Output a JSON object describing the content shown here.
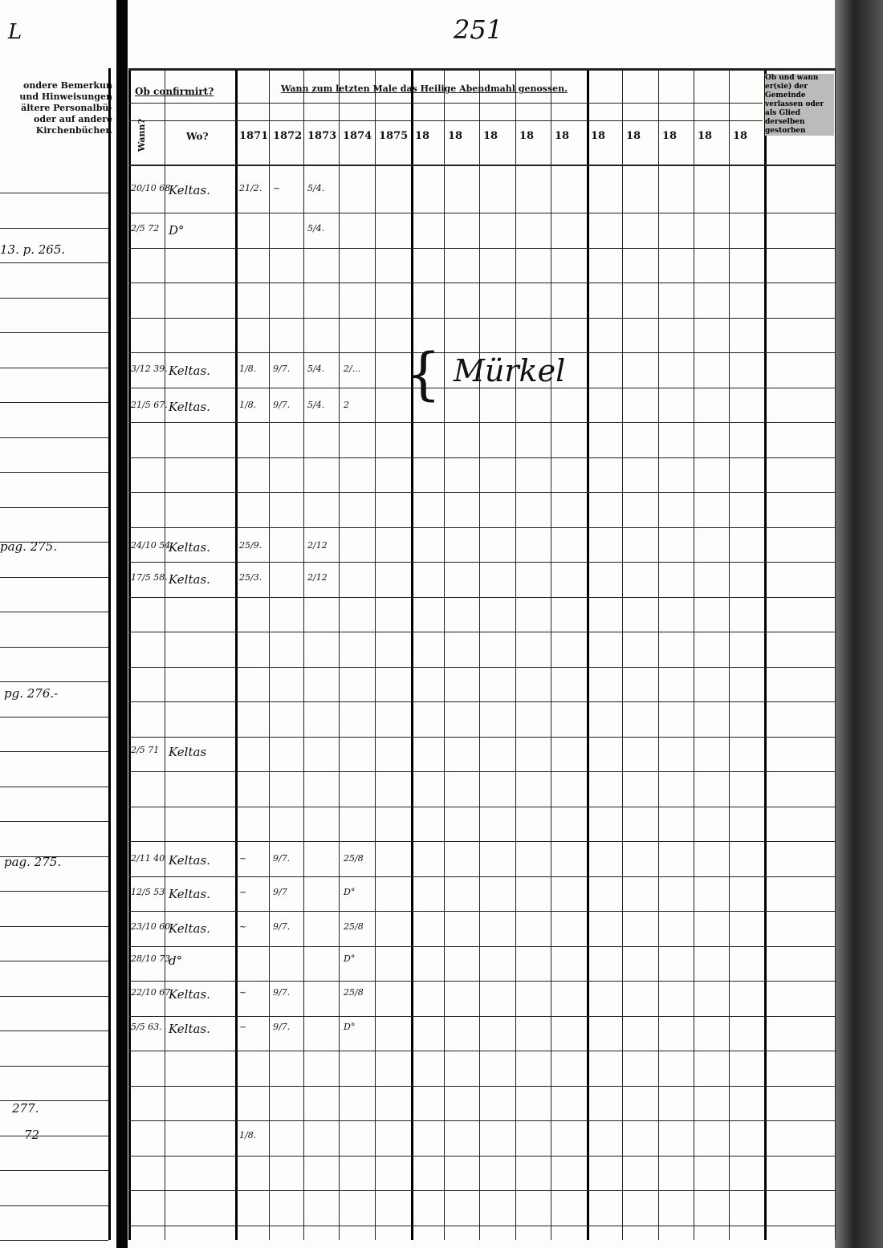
{
  "page_number": "251",
  "left_page": {
    "header_lines": [
      "ondere Bemerkun",
      "und Hinweisungen",
      "ältere Personalbü-",
      "oder auf andere",
      "Kirchenbücher."
    ],
    "top_mark": "L",
    "notes": [
      {
        "text": "13. p. 265."
      },
      {
        "text": "pag. 275."
      },
      {
        "text": "pg. 276.-"
      },
      {
        "text": "pag. 275."
      },
      {
        "text": "277."
      },
      {
        "text": "72"
      }
    ]
  },
  "table": {
    "confirmed_header": "Ob confirmirt?",
    "when_header": "Wann?",
    "where_header": "Wo?",
    "communion_header": "Wann zum letzten Male das Heilige Abendmahl genossen.",
    "year_columns": [
      "1871",
      "1872",
      "1873",
      "1874",
      "1875",
      "18",
      "18",
      "18",
      "18",
      "18",
      "18",
      "18",
      "18",
      "18",
      "18"
    ],
    "last_column_header": "Ob und wann er(sie) der Gemeinde verlassen oder als Glied derselben gestorben",
    "rows": [
      {
        "when": "20/10 68",
        "where": "Keltas.",
        "c1871": "21/2.",
        "c1872": "~",
        "c1873": "5/4."
      },
      {
        "when": "2/5 72",
        "where": "D°",
        "c1873": "5/4."
      },
      {
        "when": "3/12 39.",
        "where": "Keltas.",
        "c1871": "1/8.",
        "c1872": "9/7.",
        "c1873": "5/4.",
        "c1874": "2/..."
      },
      {
        "when": "21/5 67.",
        "where": "Keltas.",
        "c1871": "1/8.",
        "c1872": "9/7.",
        "c1873": "5/4.",
        "c1874": "2"
      },
      {
        "when": "24/10 54.",
        "where": "Keltas.",
        "c1871": "25/9.",
        "c1873": "2/12"
      },
      {
        "when": "17/5 58.",
        "where": "Keltas.",
        "c1871": "25/3.",
        "c1873": "2/12"
      },
      {
        "when": "2/5 71",
        "where": "Keltas"
      },
      {
        "when": "2/11 40",
        "where": "Keltas.",
        "c1871": "~",
        "c1872": "9/7.",
        "c1874": "25/8"
      },
      {
        "when": "12/5 53",
        "where": "Keltas.",
        "c1871": "~",
        "c1872": "9/7",
        "c1874": "D°"
      },
      {
        "when": "23/10 60.",
        "where": "Keltas.",
        "c1871": "~",
        "c1872": "9/7.",
        "c1874": "25/8"
      },
      {
        "when": "28/10 73",
        "where": "d°",
        "c1874": "D°"
      },
      {
        "when": "22/10 67.",
        "where": "Keltas.",
        "c1871": "~",
        "c1872": "9/7.",
        "c1874": "25/8"
      },
      {
        "when": "5/5 63.",
        "where": "Keltas.",
        "c1871": "~",
        "c1872": "9/7.",
        "c1874": "D°"
      },
      {
        "c1871": "1/8."
      }
    ],
    "annotation": "Mürkel"
  }
}
